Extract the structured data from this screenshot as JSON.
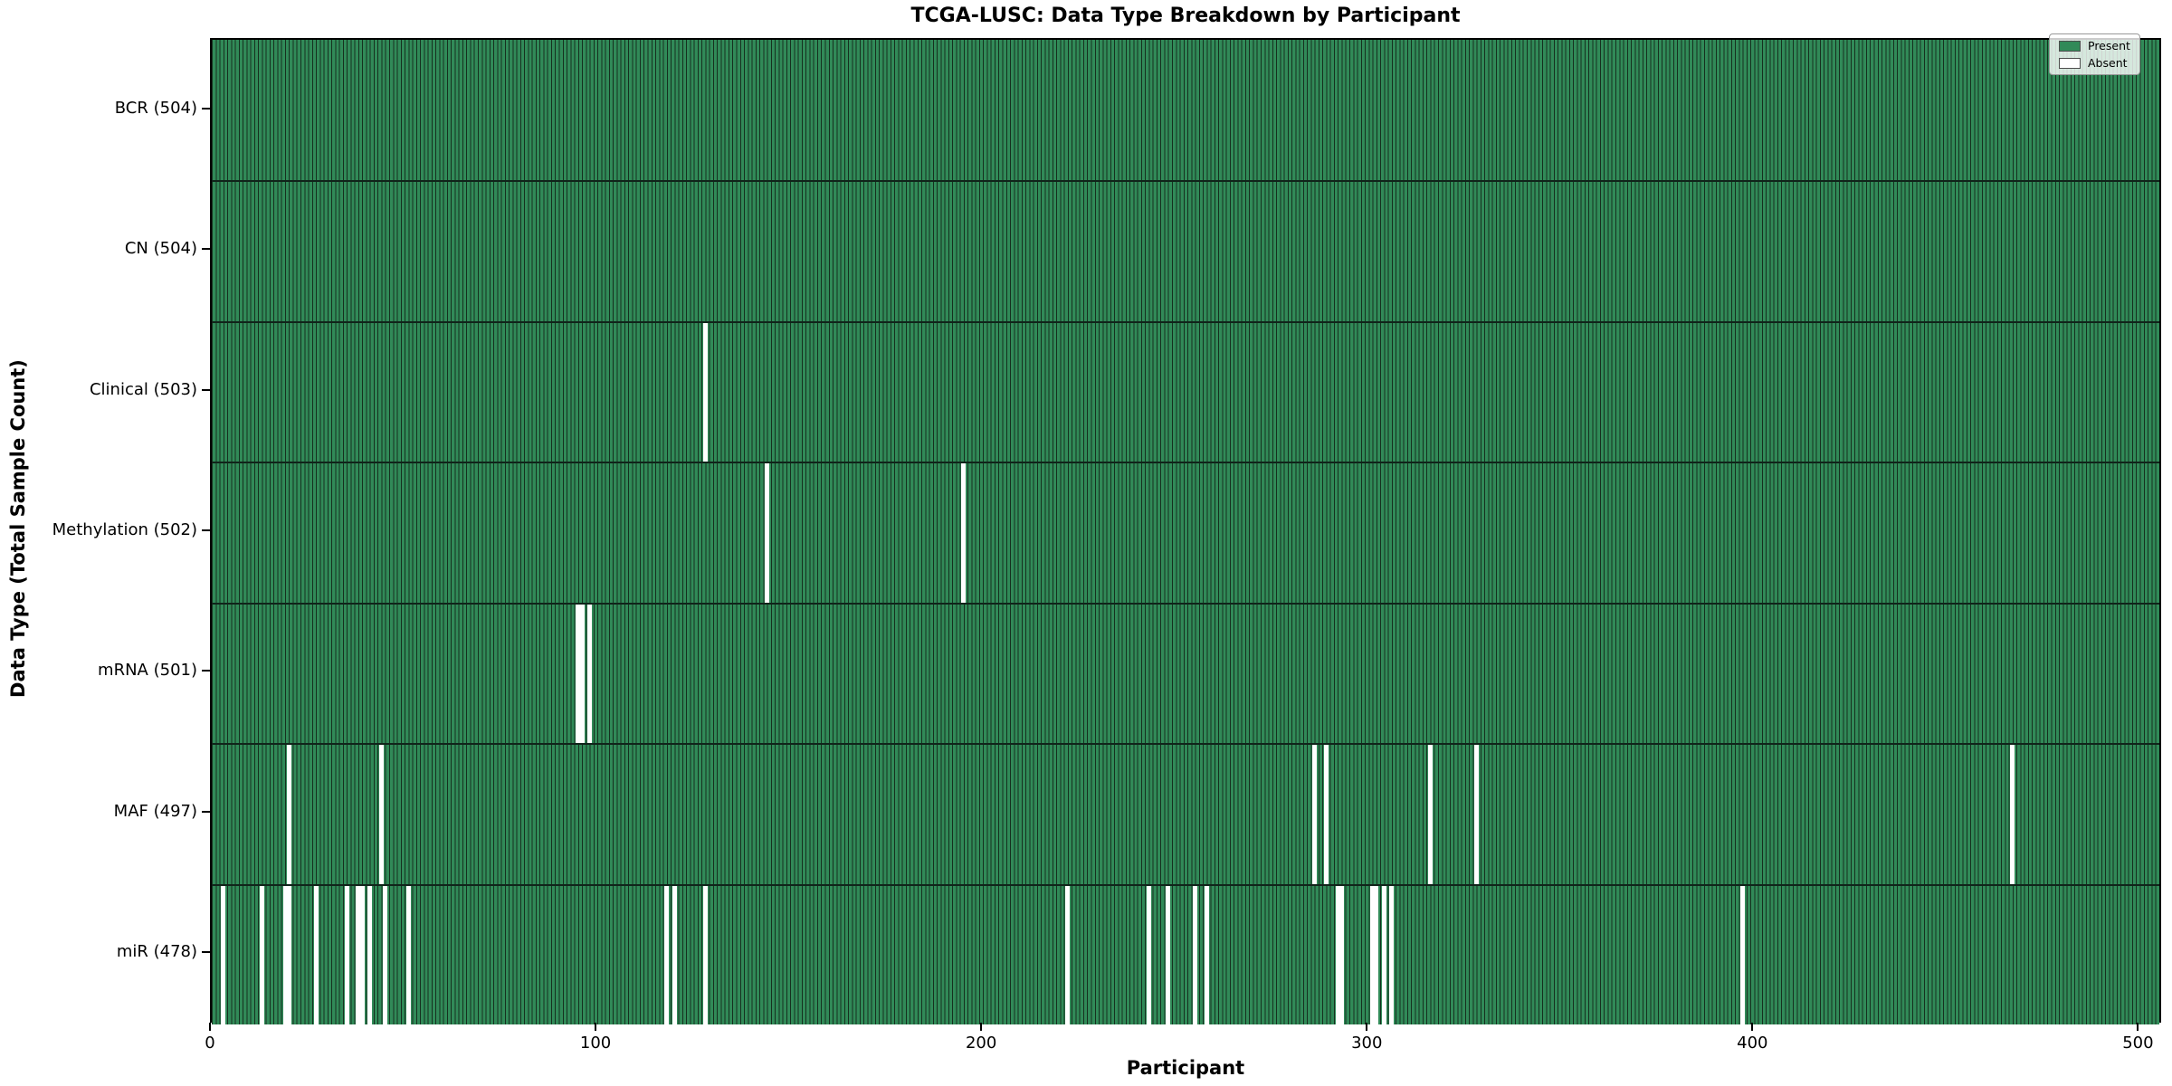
{
  "chart_data": {
    "type": "heatmap",
    "title": "TCGA-LUSC: Data Type Breakdown by Participant",
    "xlabel": "Participant",
    "ylabel": "Data Type (Total Sample Count)",
    "x_ticks": [
      "0",
      "100",
      "200",
      "300",
      "400",
      "500"
    ],
    "x_tick_values": [
      0,
      100,
      200,
      300,
      400,
      500
    ],
    "xlim": [
      0,
      506
    ],
    "n_participants": 504,
    "grid": false,
    "legend": {
      "position": "upper right",
      "entries": [
        {
          "label": "Present",
          "color": "#318a58"
        },
        {
          "label": "Absent",
          "color": "#ffffff"
        }
      ]
    },
    "colors": {
      "present": "#318a58",
      "absent": "#ffffff",
      "bar_edge": "#16301f",
      "row_separator": "#10241a",
      "axis": "#000000"
    },
    "rows": [
      {
        "label": "BCR (504)",
        "data_type": "BCR",
        "total_samples": 504,
        "absent_participants": []
      },
      {
        "label": "CN (504)",
        "data_type": "CN",
        "total_samples": 504,
        "absent_participants": []
      },
      {
        "label": "Clinical (503)",
        "data_type": "Clinical",
        "total_samples": 503,
        "absent_participants": [
          128
        ]
      },
      {
        "label": "Methylation (502)",
        "data_type": "Methylation",
        "total_samples": 502,
        "absent_participants": [
          144,
          195
        ]
      },
      {
        "label": "mRNA (501)",
        "data_type": "mRNA",
        "total_samples": 501,
        "absent_participants": [
          95,
          96,
          98
        ]
      },
      {
        "label": "MAF (497)",
        "data_type": "MAF",
        "total_samples": 497,
        "absent_participants": [
          20,
          44,
          286,
          289,
          316,
          328,
          467
        ]
      },
      {
        "label": "miR (478)",
        "data_type": "miR",
        "total_samples": 478,
        "absent_participants": [
          3,
          13,
          19,
          20,
          27,
          35,
          38,
          39,
          41,
          45,
          51,
          118,
          120,
          128,
          222,
          243,
          248,
          255,
          258,
          292,
          293,
          301,
          302,
          304,
          306,
          397
        ]
      }
    ]
  }
}
